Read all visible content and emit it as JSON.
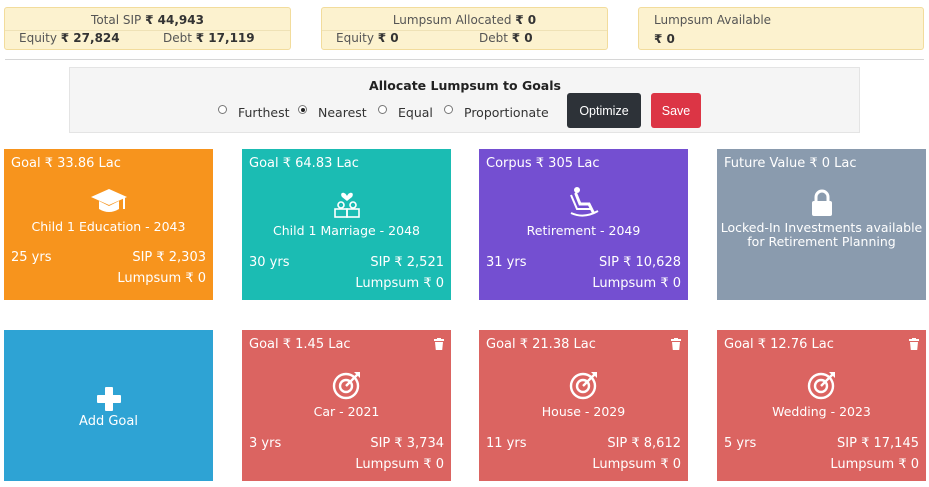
{
  "summary": {
    "sip": {
      "title": "Total SIP",
      "total": "₹ 44,943",
      "equity_label": "Equity",
      "equity": "₹ 27,824",
      "debt_label": "Debt",
      "debt": "₹ 17,119"
    },
    "allocated": {
      "title": "Lumpsum Allocated",
      "total": "₹ 0",
      "equity_label": "Equity",
      "equity": "₹ 0",
      "debt_label": "Debt",
      "debt": "₹ 0"
    },
    "available": {
      "title": "Lumpsum Available",
      "value": "₹ 0"
    }
  },
  "allocate": {
    "title": "Allocate Lumpsum to Goals",
    "options": [
      {
        "label": "Furthest",
        "selected": false
      },
      {
        "label": "Nearest",
        "selected": true
      },
      {
        "label": "Equal",
        "selected": false
      },
      {
        "label": "Proportionate",
        "selected": false
      }
    ],
    "optimize_label": "Optimize",
    "save_label": "Save"
  },
  "goals": [
    {
      "head": "Goal ₹ 33.86 Lac",
      "icon": "graduation-cap-icon",
      "name": "Child 1 Education - 2043",
      "years": "25 yrs",
      "sip": "SIP ₹ 2,303",
      "lumpsum": "Lumpsum ₹ 0"
    },
    {
      "head": "Goal ₹ 64.83 Lac",
      "icon": "marriage-icon",
      "name": "Child 1 Marriage - 2048",
      "years": "30 yrs",
      "sip": "SIP ₹ 2,521",
      "lumpsum": "Lumpsum ₹ 0"
    },
    {
      "head": "Corpus ₹ 305 Lac",
      "icon": "rocking-chair-icon",
      "name": "Retirement - 2049",
      "years": "31 yrs",
      "sip": "SIP ₹ 10,628",
      "lumpsum": "Lumpsum ₹ 0"
    },
    {
      "head": "Future Value ₹ 0 Lac",
      "icon": "lock-icon",
      "name": "Locked-In Investments available for Retirement Planning"
    },
    {
      "name": "Add Goal",
      "icon": "plus-icon"
    },
    {
      "head": "Goal ₹ 1.45 Lac",
      "icon": "target-icon",
      "name": "Car - 2021",
      "years": "3 yrs",
      "sip": "SIP ₹ 3,734",
      "lumpsum": "Lumpsum ₹ 0"
    },
    {
      "head": "Goal ₹ 21.38 Lac",
      "icon": "target-icon",
      "name": "House - 2029",
      "years": "11 yrs",
      "sip": "SIP ₹ 8,612",
      "lumpsum": "Lumpsum ₹ 0"
    },
    {
      "head": "Goal ₹ 12.76 Lac",
      "icon": "target-icon",
      "name": "Wedding - 2023",
      "years": "5 yrs",
      "sip": "SIP ₹ 17,145",
      "lumpsum": "Lumpsum ₹ 0"
    }
  ]
}
